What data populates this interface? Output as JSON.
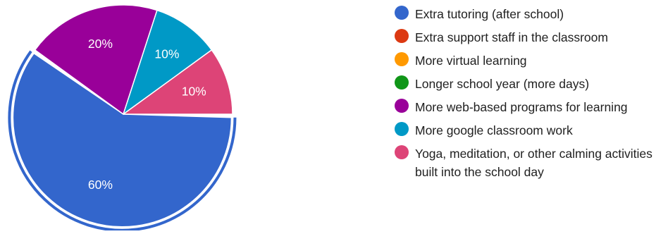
{
  "chart_data": {
    "type": "pie",
    "title": "",
    "series": [
      {
        "name": "Extra tutoring (after school)",
        "value": 60,
        "label": "60%",
        "color": "#3366cc"
      },
      {
        "name": "Extra support staff in the classroom",
        "value": 0,
        "label": "",
        "color": "#dc3912"
      },
      {
        "name": "More virtual learning",
        "value": 0,
        "label": "",
        "color": "#ff9900"
      },
      {
        "name": "Longer school year (more days)",
        "value": 0,
        "label": "",
        "color": "#109618"
      },
      {
        "name": "More web-based programs for learning",
        "value": 20,
        "label": "20%",
        "color": "#990099"
      },
      {
        "name": "More google classroom work",
        "value": 10,
        "label": "10%",
        "color": "#0099c6"
      },
      {
        "name": "Yoga, meditation, or other calming activities built into the school day",
        "value": 10,
        "label": "10%",
        "color": "#dd4477"
      }
    ],
    "highlighted_slice": "Extra tutoring (after school)",
    "legend_position": "right"
  }
}
